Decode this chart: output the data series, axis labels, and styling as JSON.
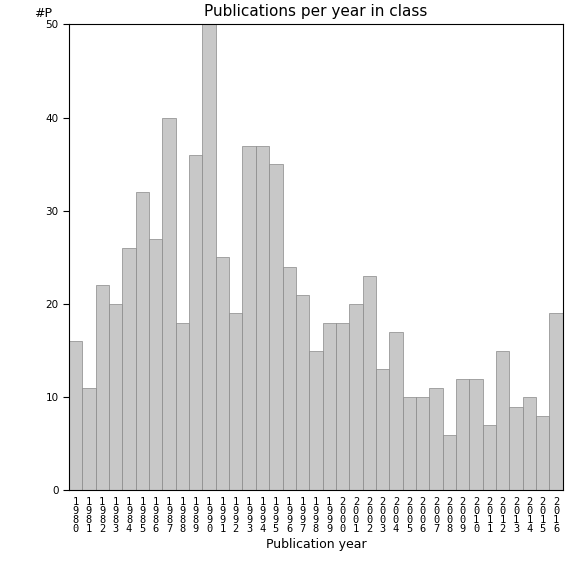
{
  "title": "Publications per year in class",
  "xlabel": "Publication year",
  "ylabel": "#P",
  "years": [
    1980,
    1981,
    1982,
    1983,
    1984,
    1985,
    1986,
    1987,
    1988,
    1989,
    1990,
    1991,
    1992,
    1993,
    1994,
    1995,
    1996,
    1997,
    1998,
    1999,
    2000,
    2001,
    2002,
    2003,
    2004,
    2005,
    2006,
    2007,
    2008,
    2009,
    2010,
    2011,
    2012,
    2013,
    2014,
    2015,
    2016
  ],
  "values": [
    16,
    11,
    22,
    20,
    26,
    32,
    27,
    40,
    18,
    36,
    50,
    25,
    19,
    37,
    37,
    35,
    24,
    21,
    15,
    18,
    18,
    20,
    23,
    13,
    17,
    10,
    10,
    11,
    6,
    12,
    12,
    7,
    15,
    9,
    10,
    8,
    19
  ],
  "bar_color": "#c8c8c8",
  "bar_edgecolor": "#888888",
  "ylim": [
    0,
    50
  ],
  "yticks": [
    0,
    10,
    20,
    30,
    40,
    50
  ],
  "background_color": "#ffffff",
  "title_fontsize": 11,
  "label_fontsize": 9,
  "tick_fontsize": 7.5
}
